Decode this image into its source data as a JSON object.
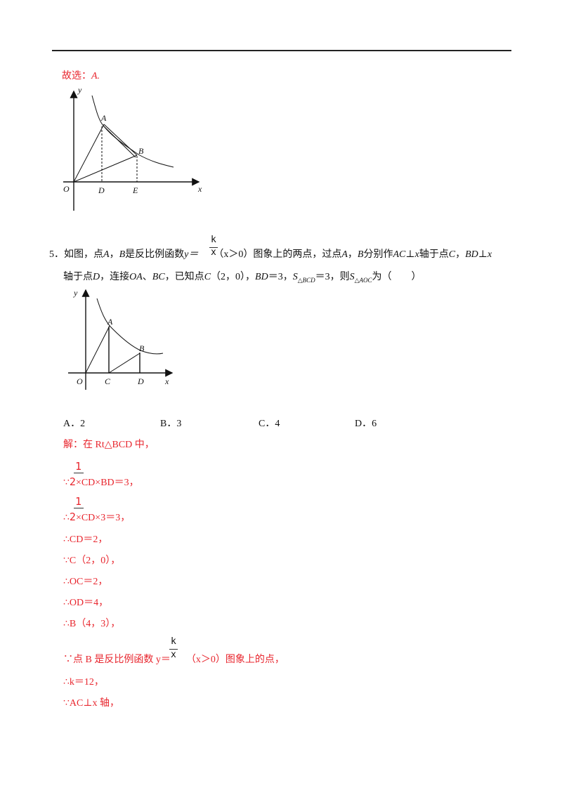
{
  "answer_prev": {
    "label": "故选：",
    "choice": "A."
  },
  "figure1": {
    "labels": {
      "y": "y",
      "A": "A",
      "B": "B",
      "O": "O",
      "D": "D",
      "E": "E",
      "x": "x"
    }
  },
  "q5": {
    "number": "5．",
    "line1_a": "如图，点",
    "A": "A",
    "sep": "，",
    "B": "B",
    "line1_b": "是反比例函数",
    "y_eq": "y＝",
    "k": "k",
    "xden": "x",
    "cond": "（x＞0）图象上的两点，过点",
    "line1_c": "分别作",
    "AC": "AC",
    "perp_x": "⊥x",
    "line1_d": "轴于点",
    "C": "C",
    "BD": "BD",
    "line2_a": "轴于点",
    "D": "D",
    "line2_b": "，连接",
    "OA": "OA",
    "dun": "、",
    "BC": "BC",
    "line2_c": "，已知点",
    "C_coord": "（2，0），",
    "BD_eq": "＝3，",
    "S": "S",
    "sub_bcd": "△BCD",
    "eq3": "＝3，则",
    "sub_aoc": "△AOC",
    "wei": "为（　　）"
  },
  "figure2": {
    "labels": {
      "y": "y",
      "A": "A",
      "B": "B",
      "O": "O",
      "C": "C",
      "D": "D",
      "x": "x"
    }
  },
  "options": [
    {
      "letter": "A．",
      "value": "2"
    },
    {
      "letter": "B．",
      "value": "3"
    },
    {
      "letter": "C．",
      "value": "4"
    },
    {
      "letter": "D．",
      "value": "6"
    }
  ],
  "solution": {
    "intro": "解：在 Rt△BCD 中，",
    "frac_num": "1",
    "frac_den": "2",
    "s1": "∵",
    "s1b": "×CD×BD＝3，",
    "s2": "∴",
    "s2b": "×CD×3＝3，",
    "s3": "∴CD＝2，",
    "s4": "∵C（2，0），",
    "s5": "∴OC＝2，",
    "s6": "∴OD＝4，",
    "s7": "∴B（4，3），",
    "s8a": "∵点 B 是反比例函数 y＝",
    "s8k": "k",
    "s8x": "x",
    "s8b": "（x＞0）图象上的点，",
    "s9": "∴k＝12，",
    "s10": "∵AC⊥x 轴，"
  }
}
